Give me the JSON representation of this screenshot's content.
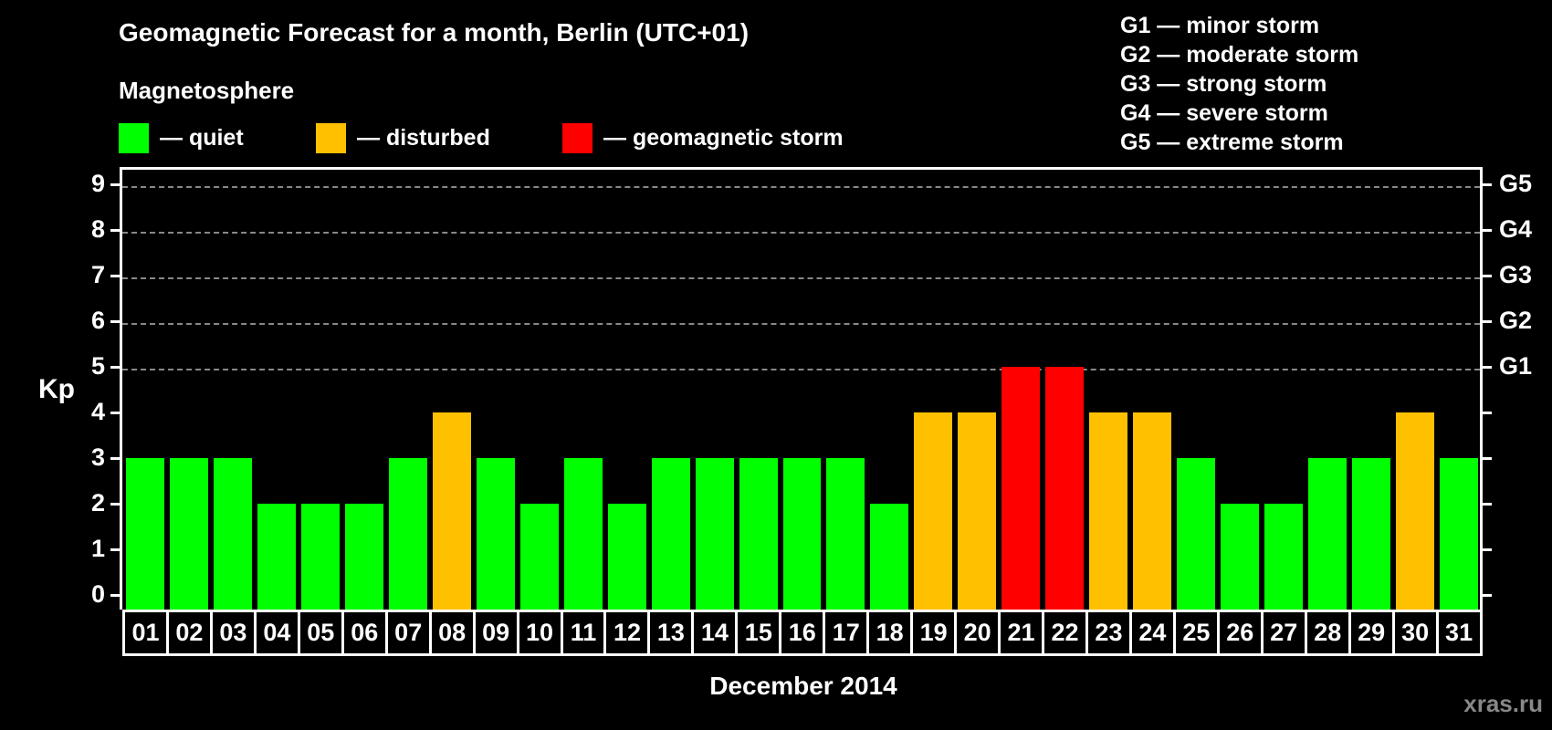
{
  "title": "Geomagnetic Forecast for a month, Berlin (UTC+01)",
  "subtitle": "Magnetosphere",
  "legend": [
    {
      "label": "— quiet",
      "color": "#00ff00"
    },
    {
      "label": "— disturbed",
      "color": "#ffc000"
    },
    {
      "label": "— geomagnetic storm",
      "color": "#ff0000"
    }
  ],
  "g_legend": [
    "G1 — minor storm",
    "G2 — moderate storm",
    "G3 — strong storm",
    "G4 — severe storm",
    "G5 — extreme storm"
  ],
  "watermark": "xras.ru",
  "chart_data": {
    "type": "bar",
    "title": "Geomagnetic Forecast for a month, Berlin (UTC+01)",
    "xlabel": "December 2014",
    "ylabel": "Kp",
    "ylim": [
      0,
      9
    ],
    "yticks": [
      0,
      1,
      2,
      3,
      4,
      5,
      6,
      7,
      8,
      9
    ],
    "right_axis_labels": {
      "5": "G1",
      "6": "G2",
      "7": "G3",
      "8": "G4",
      "9": "G5"
    },
    "grid": "dashed horizontal at Kp 5-9",
    "categories": [
      "01",
      "02",
      "03",
      "04",
      "05",
      "06",
      "07",
      "08",
      "09",
      "10",
      "11",
      "12",
      "13",
      "14",
      "15",
      "16",
      "17",
      "18",
      "19",
      "20",
      "21",
      "22",
      "23",
      "24",
      "25",
      "26",
      "27",
      "28",
      "29",
      "30",
      "31"
    ],
    "values": [
      3,
      3,
      3,
      2,
      2,
      2,
      3,
      4,
      3,
      2,
      3,
      2,
      3,
      3,
      3,
      3,
      3,
      2,
      4,
      4,
      5,
      5,
      4,
      4,
      3,
      2,
      2,
      3,
      3,
      4,
      3
    ],
    "status": [
      "quiet",
      "quiet",
      "quiet",
      "quiet",
      "quiet",
      "quiet",
      "quiet",
      "disturbed",
      "quiet",
      "quiet",
      "quiet",
      "quiet",
      "quiet",
      "quiet",
      "quiet",
      "quiet",
      "quiet",
      "quiet",
      "disturbed",
      "disturbed",
      "storm",
      "storm",
      "disturbed",
      "disturbed",
      "quiet",
      "quiet",
      "quiet",
      "quiet",
      "quiet",
      "disturbed",
      "quiet"
    ],
    "colors": {
      "quiet": "#00ff00",
      "disturbed": "#ffc000",
      "storm": "#ff0000"
    }
  }
}
